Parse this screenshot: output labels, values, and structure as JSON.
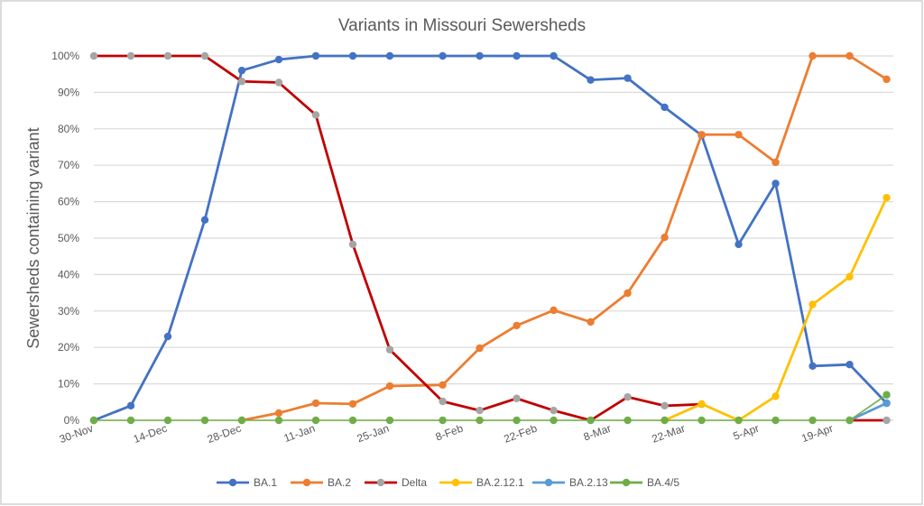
{
  "chart_data": {
    "type": "line",
    "title": "Variants in Missouri Sewersheds",
    "xlabel": "",
    "ylabel": "Sewersheds containing variant",
    "ylim": [
      0,
      100
    ],
    "y_ticks": [
      "0%",
      "10%",
      "20%",
      "30%",
      "40%",
      "50%",
      "60%",
      "70%",
      "80%",
      "90%",
      "100%"
    ],
    "x_tick_labels": [
      "30-Nov",
      "14-Dec",
      "28-Dec",
      "11-Jan",
      "25-Jan",
      "8-Feb",
      "22-Feb",
      "8-Mar",
      "22-Mar",
      "5-Apr",
      "19-Apr"
    ],
    "x_tick_days": [
      0,
      14,
      28,
      42,
      56,
      70,
      84,
      98,
      112,
      126,
      140
    ],
    "x_range_days": [
      0,
      151
    ],
    "x_days": [
      0,
      7,
      14,
      21,
      28,
      35,
      42,
      49,
      56,
      66,
      73,
      80,
      87,
      94,
      101,
      108,
      115,
      122,
      129,
      136,
      143,
      150
    ],
    "grid": true,
    "legend_position": "bottom",
    "series": [
      {
        "name": "BA.1",
        "color": "#4472C4",
        "marker": "#4472C4",
        "width": 2.8,
        "values": [
          0,
          4,
          23,
          55,
          96,
          99,
          100,
          100,
          100,
          100,
          100,
          100,
          100,
          93.4,
          93.9,
          85.9,
          78.2,
          48.3,
          65,
          14.9,
          15.3,
          4.7
        ]
      },
      {
        "name": "BA.2",
        "color": "#ED7D31",
        "marker": "#ED7D31",
        "width": 2.8,
        "values": [
          null,
          null,
          null,
          null,
          0,
          2,
          4.7,
          4.5,
          9.4,
          9.7,
          19.8,
          26,
          30.2,
          27,
          34.9,
          50.2,
          78.4,
          78.4,
          70.8,
          100,
          100,
          93.6
        ]
      },
      {
        "name": "Delta",
        "color": "#C00000",
        "marker": "#A5A5A5",
        "width": 2.8,
        "values": [
          100,
          100,
          100,
          100,
          93,
          92.7,
          83.8,
          48.3,
          19.4,
          5.2,
          2.7,
          6,
          2.7,
          0,
          6.4,
          4,
          4.4,
          null,
          null,
          null,
          0,
          0
        ]
      },
      {
        "name": "BA.2.12.1",
        "color": "#FFC000",
        "marker": "#FFC000",
        "width": 2.8,
        "values": [
          null,
          null,
          null,
          null,
          null,
          null,
          null,
          null,
          null,
          null,
          null,
          null,
          null,
          null,
          null,
          0,
          4.5,
          0,
          6.6,
          31.8,
          39.4,
          61.1
        ]
      },
      {
        "name": "BA.2.13",
        "color": "#5B9BD5",
        "marker": "#5B9BD5",
        "width": 2.8,
        "values": [
          null,
          null,
          null,
          null,
          null,
          null,
          null,
          null,
          null,
          null,
          null,
          null,
          null,
          null,
          null,
          null,
          null,
          null,
          null,
          null,
          0,
          4.7
        ]
      },
      {
        "name": "BA.4/5",
        "color": "#70AD47",
        "marker": "#70AD47",
        "width": 1.6,
        "values": [
          0,
          0,
          0,
          0,
          0,
          0,
          0,
          0,
          0,
          0,
          0,
          0,
          0,
          0,
          0,
          0,
          0,
          0,
          0,
          0,
          0,
          7
        ]
      }
    ]
  }
}
